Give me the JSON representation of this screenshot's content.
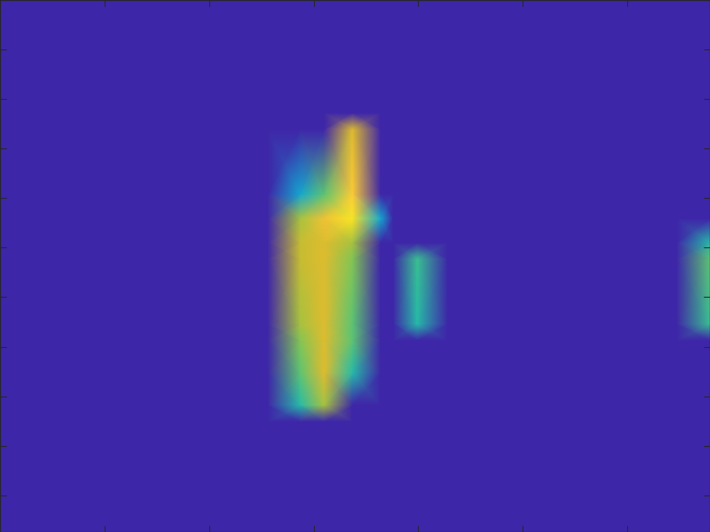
{
  "chart_data": {
    "type": "heatmap",
    "x": [
      0,
      2.56,
      2.87,
      3.1,
      3.37,
      3.64,
      3.76,
      3.99,
      4.28,
      4.57,
      6.47,
      6.79
    ],
    "y": [
      0.26,
      2.49,
      2.82,
      3.47,
      4.13,
      4.46,
      5.77,
      6.1,
      6.59,
      7.08,
      8.39,
      8.72,
      11.0
    ],
    "cells": [
      [
        0,
        0,
        0,
        0,
        0,
        0,
        0,
        0,
        0,
        0,
        0,
        0
      ],
      [
        0,
        0,
        0,
        0,
        0,
        0,
        0,
        0,
        0,
        0,
        0,
        0
      ],
      [
        0,
        0,
        0.5,
        0.7,
        0,
        0,
        0,
        0,
        0,
        0,
        0,
        0
      ],
      [
        0,
        0,
        0.6,
        0.8,
        0.5,
        0,
        0,
        0,
        0,
        0,
        0,
        0
      ],
      [
        0,
        0,
        0.65,
        0.8,
        0.6,
        0,
        0,
        0,
        0,
        0,
        0,
        0
      ],
      [
        0,
        0,
        0.7,
        0.8,
        0.6,
        0,
        0,
        0.5,
        0,
        0,
        0,
        0.55
      ],
      [
        0,
        0,
        0.75,
        0.8,
        0.65,
        0,
        0,
        0.55,
        0,
        0,
        0,
        0.6
      ],
      [
        0,
        0,
        0.75,
        0.8,
        0.7,
        0,
        0,
        0,
        0,
        0,
        0,
        0.5
      ],
      [
        0,
        0,
        0.7,
        0.85,
        0.95,
        0.4,
        0,
        0,
        0,
        0,
        0,
        0
      ],
      [
        0,
        0,
        0.4,
        0.6,
        0.9,
        0,
        0,
        0,
        0,
        0,
        0,
        0
      ],
      [
        0,
        0,
        0,
        0,
        0.8,
        0,
        0,
        0,
        0,
        0,
        0,
        0
      ],
      [
        0,
        0,
        0,
        0,
        0,
        0,
        0,
        0,
        0,
        0,
        0,
        0
      ],
      [
        0,
        0,
        0,
        0,
        0,
        0,
        0,
        0,
        0,
        0,
        0,
        0
      ]
    ],
    "color_range": [
      0,
      1
    ],
    "xlim": [
      0,
      6.79
    ],
    "ylim": [
      0.26,
      11.0
    ],
    "xticks": [
      1,
      2,
      3,
      4,
      5,
      6
    ],
    "yticks": [
      1,
      2,
      3,
      4,
      5,
      6,
      7,
      8,
      9,
      10
    ],
    "tick_labels": false
  }
}
